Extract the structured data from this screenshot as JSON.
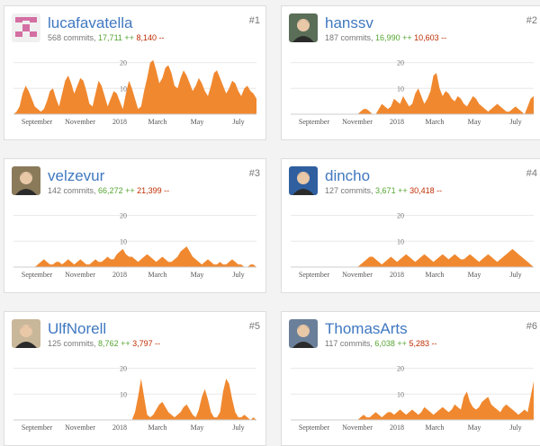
{
  "axis": {
    "x_labels": [
      "September",
      "November",
      "2018",
      "March",
      "May",
      "July"
    ],
    "y_ticks": [
      "10",
      "20"
    ]
  },
  "contributors": [
    {
      "rank": "#1",
      "username": "lucafavatella",
      "commits": "568 commits",
      "additions": "17,711 ++",
      "deletions": "8,140 --",
      "avatar_icon": "pink-identicon-icon",
      "chart_data": {
        "type": "area",
        "ylim": [
          0,
          20
        ],
        "values": [
          0,
          1,
          3,
          8,
          11,
          9,
          6,
          3,
          2,
          1,
          2,
          5,
          9,
          10,
          6,
          3,
          8,
          13,
          15,
          12,
          8,
          11,
          14,
          13,
          9,
          4,
          3,
          8,
          13,
          11,
          7,
          3,
          6,
          9,
          8,
          5,
          2,
          8,
          13,
          10,
          6,
          2,
          3,
          9,
          14,
          20,
          21,
          17,
          12,
          14,
          18,
          19,
          16,
          11,
          10,
          14,
          17,
          15,
          12,
          9,
          11,
          14,
          12,
          9,
          7,
          11,
          16,
          17,
          14,
          11,
          8,
          10,
          13,
          12,
          9,
          7,
          10,
          11,
          9,
          8,
          6
        ]
      }
    },
    {
      "rank": "#2",
      "username": "hanssv",
      "commits": "187 commits",
      "additions": "16,990 ++",
      "deletions": "10,603 --",
      "avatar_icon": "person-avatar-icon",
      "chart_data": {
        "type": "area",
        "ylim": [
          0,
          20
        ],
        "values": [
          0,
          0,
          0,
          0,
          0,
          0,
          0,
          0,
          0,
          0,
          0,
          0,
          0,
          0,
          0,
          0,
          0,
          0,
          0,
          0,
          0,
          0,
          0,
          1,
          2,
          2,
          1,
          0,
          0,
          2,
          4,
          3,
          2,
          3,
          6,
          5,
          4,
          7,
          5,
          3,
          4,
          8,
          10,
          7,
          4,
          6,
          9,
          15,
          16,
          10,
          7,
          9,
          8,
          6,
          5,
          7,
          6,
          4,
          3,
          5,
          7,
          6,
          4,
          3,
          2,
          1,
          2,
          3,
          4,
          3,
          2,
          1,
          1,
          2,
          3,
          2,
          1,
          0,
          3,
          6,
          7
        ]
      }
    },
    {
      "rank": "#3",
      "username": "velzevur",
      "commits": "142 commits",
      "additions": "66,272 ++",
      "deletions": "21,399 --",
      "avatar_icon": "person-avatar-icon",
      "chart_data": {
        "type": "area",
        "ylim": [
          0,
          20
        ],
        "values": [
          0,
          0,
          0,
          0,
          0,
          0,
          0,
          0,
          1,
          2,
          3,
          2,
          1,
          1,
          2,
          2,
          1,
          2,
          3,
          2,
          1,
          2,
          3,
          2,
          1,
          1,
          2,
          3,
          2,
          2,
          3,
          4,
          3,
          3,
          5,
          6,
          7,
          5,
          4,
          4,
          3,
          2,
          3,
          4,
          5,
          4,
          3,
          2,
          3,
          4,
          3,
          2,
          2,
          3,
          4,
          6,
          7,
          8,
          6,
          4,
          3,
          2,
          1,
          2,
          3,
          2,
          1,
          1,
          2,
          1,
          1,
          2,
          3,
          2,
          1,
          1,
          0,
          0,
          1,
          1,
          0
        ]
      }
    },
    {
      "rank": "#4",
      "username": "dincho",
      "commits": "127 commits",
      "additions": "3,671 ++",
      "deletions": "30,418 --",
      "avatar_icon": "person-avatar-icon",
      "chart_data": {
        "type": "area",
        "ylim": [
          0,
          20
        ],
        "values": [
          0,
          0,
          0,
          0,
          0,
          0,
          0,
          0,
          0,
          0,
          0,
          0,
          0,
          0,
          0,
          0,
          0,
          0,
          0,
          0,
          0,
          0,
          0,
          1,
          2,
          3,
          4,
          4,
          3,
          2,
          1,
          2,
          3,
          4,
          3,
          2,
          3,
          4,
          5,
          4,
          3,
          2,
          3,
          4,
          5,
          4,
          3,
          2,
          3,
          4,
          5,
          4,
          3,
          4,
          5,
          4,
          3,
          3,
          4,
          5,
          4,
          3,
          2,
          3,
          4,
          5,
          4,
          3,
          2,
          3,
          4,
          5,
          6,
          7,
          6,
          5,
          4,
          3,
          2,
          1,
          0
        ]
      }
    },
    {
      "rank": "#5",
      "username": "UlfNorell",
      "commits": "125 commits",
      "additions": "8,762 ++",
      "deletions": "3,797 --",
      "avatar_icon": "person-avatar-icon",
      "chart_data": {
        "type": "area",
        "ylim": [
          0,
          20
        ],
        "values": [
          0,
          0,
          0,
          0,
          0,
          0,
          0,
          0,
          0,
          0,
          0,
          0,
          0,
          0,
          0,
          0,
          0,
          0,
          0,
          0,
          0,
          0,
          0,
          0,
          0,
          0,
          0,
          0,
          0,
          0,
          0,
          0,
          0,
          0,
          0,
          0,
          0,
          0,
          0,
          0,
          3,
          9,
          16,
          9,
          2,
          1,
          2,
          4,
          6,
          7,
          5,
          3,
          2,
          1,
          2,
          3,
          5,
          6,
          4,
          2,
          1,
          4,
          9,
          12,
          8,
          3,
          1,
          1,
          3,
          11,
          16,
          14,
          8,
          3,
          1,
          1,
          2,
          1,
          0,
          1,
          0
        ]
      }
    },
    {
      "rank": "#6",
      "username": "ThomasArts",
      "commits": "117 commits",
      "additions": "6,038 ++",
      "deletions": "5,283 --",
      "avatar_icon": "person-avatar-icon",
      "chart_data": {
        "type": "area",
        "ylim": [
          0,
          20
        ],
        "values": [
          0,
          0,
          0,
          0,
          0,
          0,
          0,
          0,
          0,
          0,
          0,
          0,
          0,
          0,
          0,
          0,
          0,
          0,
          0,
          0,
          0,
          0,
          0,
          1,
          2,
          1,
          1,
          2,
          3,
          2,
          1,
          2,
          3,
          3,
          2,
          3,
          4,
          3,
          2,
          3,
          4,
          3,
          2,
          3,
          5,
          4,
          3,
          2,
          3,
          4,
          5,
          4,
          3,
          4,
          6,
          5,
          4,
          9,
          11,
          7,
          5,
          4,
          5,
          7,
          8,
          9,
          6,
          5,
          4,
          3,
          5,
          6,
          5,
          4,
          3,
          2,
          3,
          4,
          3,
          9,
          15
        ]
      }
    }
  ],
  "colors": {
    "area": "#f0882f",
    "link": "#4078c0",
    "add": "#55a532",
    "del": "#bd2c00"
  }
}
